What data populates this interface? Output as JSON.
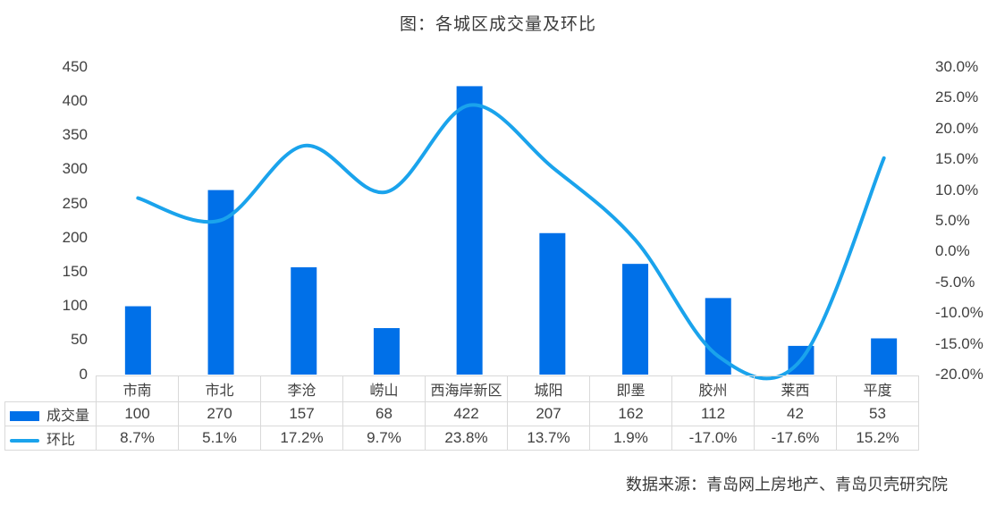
{
  "title": "图：各城区成交量及环比",
  "source": "数据来源：青岛网上房地产、青岛贝壳研究院",
  "colors": {
    "bar": "#0070e8",
    "line": "#1aa3ec",
    "grid": "#d9d9d9",
    "text": "#404040"
  },
  "axes": {
    "left_ticks": [
      "450",
      "400",
      "350",
      "300",
      "250",
      "200",
      "150",
      "100",
      "50",
      "0"
    ],
    "right_ticks": [
      "30.0%",
      "25.0%",
      "20.0%",
      "15.0%",
      "10.0%",
      "5.0%",
      "0.0%",
      "-5.0%",
      "-10.0%",
      "-15.0%",
      "-20.0%"
    ]
  },
  "table": {
    "categories": [
      "市南",
      "市北",
      "李沧",
      "崂山",
      "西海岸新区",
      "城阳",
      "即墨",
      "胶州",
      "莱西",
      "平度"
    ],
    "rows": [
      {
        "legend": "成交量",
        "values": [
          "100",
          "270",
          "157",
          "68",
          "422",
          "207",
          "162",
          "112",
          "42",
          "53"
        ]
      },
      {
        "legend": "环比",
        "values": [
          "8.7%",
          "5.1%",
          "17.2%",
          "9.7%",
          "23.8%",
          "13.7%",
          "1.9%",
          "-17.0%",
          "-17.6%",
          "15.2%"
        ]
      }
    ]
  },
  "chart_data": {
    "type": "bar",
    "title": "图：各城区成交量及环比",
    "categories": [
      "市南",
      "市北",
      "李沧",
      "崂山",
      "西海岸新区",
      "城阳",
      "即墨",
      "胶州",
      "莱西",
      "平度"
    ],
    "series": [
      {
        "name": "成交量",
        "type": "bar",
        "axis": "left",
        "values": [
          100,
          270,
          157,
          68,
          422,
          207,
          162,
          112,
          42,
          53
        ]
      },
      {
        "name": "环比",
        "type": "line",
        "smooth": true,
        "axis": "right",
        "unit": "%",
        "values": [
          8.7,
          5.1,
          17.2,
          9.7,
          23.8,
          13.7,
          1.9,
          -17.0,
          -17.6,
          15.2
        ]
      }
    ],
    "ylim_left": [
      0,
      450
    ],
    "ylim_right": [
      -20,
      30
    ],
    "yticks_left_step": 50,
    "yticks_right_step": 5,
    "grid": false,
    "legend_position": "data-table-left",
    "xlabel": "",
    "ylabel": "",
    "annotations": [
      "数据来源：青岛网上房地产、青岛贝壳研究院"
    ]
  }
}
